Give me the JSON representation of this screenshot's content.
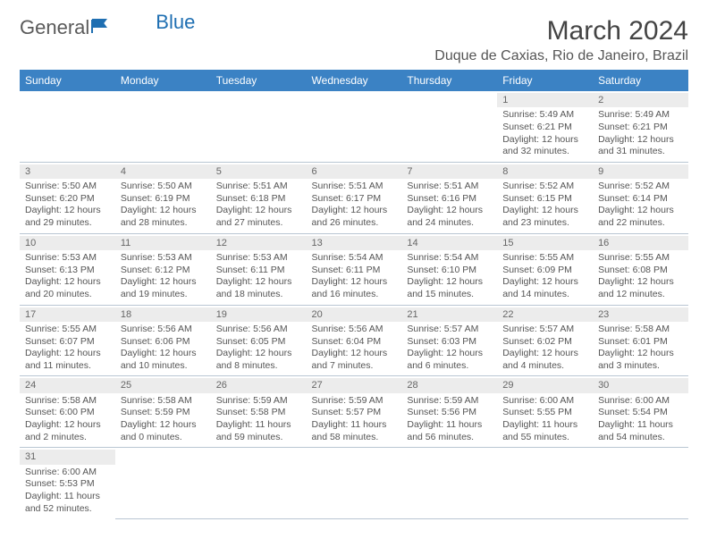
{
  "brand": {
    "name1": "General",
    "name2": "Blue"
  },
  "title": "March 2024",
  "location": "Duque de Caxias, Rio de Janeiro, Brazil",
  "colors": {
    "header_bg": "#3b82c4",
    "header_text": "#ffffff",
    "text": "#555555",
    "daynum_bg": "#ececec",
    "border": "#b9c6d3",
    "brand_accent": "#1f6fb2"
  },
  "fonts": {
    "title_size": 30,
    "location_size": 16,
    "th_size": 12,
    "cell_size": 10.5
  },
  "weekdays": [
    "Sunday",
    "Monday",
    "Tuesday",
    "Wednesday",
    "Thursday",
    "Friday",
    "Saturday"
  ],
  "leading_blanks": 5,
  "days": [
    {
      "n": "1",
      "sr": "Sunrise: 5:49 AM",
      "ss": "Sunset: 6:21 PM",
      "d1": "Daylight: 12 hours",
      "d2": "and 32 minutes."
    },
    {
      "n": "2",
      "sr": "Sunrise: 5:49 AM",
      "ss": "Sunset: 6:21 PM",
      "d1": "Daylight: 12 hours",
      "d2": "and 31 minutes."
    },
    {
      "n": "3",
      "sr": "Sunrise: 5:50 AM",
      "ss": "Sunset: 6:20 PM",
      "d1": "Daylight: 12 hours",
      "d2": "and 29 minutes."
    },
    {
      "n": "4",
      "sr": "Sunrise: 5:50 AM",
      "ss": "Sunset: 6:19 PM",
      "d1": "Daylight: 12 hours",
      "d2": "and 28 minutes."
    },
    {
      "n": "5",
      "sr": "Sunrise: 5:51 AM",
      "ss": "Sunset: 6:18 PM",
      "d1": "Daylight: 12 hours",
      "d2": "and 27 minutes."
    },
    {
      "n": "6",
      "sr": "Sunrise: 5:51 AM",
      "ss": "Sunset: 6:17 PM",
      "d1": "Daylight: 12 hours",
      "d2": "and 26 minutes."
    },
    {
      "n": "7",
      "sr": "Sunrise: 5:51 AM",
      "ss": "Sunset: 6:16 PM",
      "d1": "Daylight: 12 hours",
      "d2": "and 24 minutes."
    },
    {
      "n": "8",
      "sr": "Sunrise: 5:52 AM",
      "ss": "Sunset: 6:15 PM",
      "d1": "Daylight: 12 hours",
      "d2": "and 23 minutes."
    },
    {
      "n": "9",
      "sr": "Sunrise: 5:52 AM",
      "ss": "Sunset: 6:14 PM",
      "d1": "Daylight: 12 hours",
      "d2": "and 22 minutes."
    },
    {
      "n": "10",
      "sr": "Sunrise: 5:53 AM",
      "ss": "Sunset: 6:13 PM",
      "d1": "Daylight: 12 hours",
      "d2": "and 20 minutes."
    },
    {
      "n": "11",
      "sr": "Sunrise: 5:53 AM",
      "ss": "Sunset: 6:12 PM",
      "d1": "Daylight: 12 hours",
      "d2": "and 19 minutes."
    },
    {
      "n": "12",
      "sr": "Sunrise: 5:53 AM",
      "ss": "Sunset: 6:11 PM",
      "d1": "Daylight: 12 hours",
      "d2": "and 18 minutes."
    },
    {
      "n": "13",
      "sr": "Sunrise: 5:54 AM",
      "ss": "Sunset: 6:11 PM",
      "d1": "Daylight: 12 hours",
      "d2": "and 16 minutes."
    },
    {
      "n": "14",
      "sr": "Sunrise: 5:54 AM",
      "ss": "Sunset: 6:10 PM",
      "d1": "Daylight: 12 hours",
      "d2": "and 15 minutes."
    },
    {
      "n": "15",
      "sr": "Sunrise: 5:55 AM",
      "ss": "Sunset: 6:09 PM",
      "d1": "Daylight: 12 hours",
      "d2": "and 14 minutes."
    },
    {
      "n": "16",
      "sr": "Sunrise: 5:55 AM",
      "ss": "Sunset: 6:08 PM",
      "d1": "Daylight: 12 hours",
      "d2": "and 12 minutes."
    },
    {
      "n": "17",
      "sr": "Sunrise: 5:55 AM",
      "ss": "Sunset: 6:07 PM",
      "d1": "Daylight: 12 hours",
      "d2": "and 11 minutes."
    },
    {
      "n": "18",
      "sr": "Sunrise: 5:56 AM",
      "ss": "Sunset: 6:06 PM",
      "d1": "Daylight: 12 hours",
      "d2": "and 10 minutes."
    },
    {
      "n": "19",
      "sr": "Sunrise: 5:56 AM",
      "ss": "Sunset: 6:05 PM",
      "d1": "Daylight: 12 hours",
      "d2": "and 8 minutes."
    },
    {
      "n": "20",
      "sr": "Sunrise: 5:56 AM",
      "ss": "Sunset: 6:04 PM",
      "d1": "Daylight: 12 hours",
      "d2": "and 7 minutes."
    },
    {
      "n": "21",
      "sr": "Sunrise: 5:57 AM",
      "ss": "Sunset: 6:03 PM",
      "d1": "Daylight: 12 hours",
      "d2": "and 6 minutes."
    },
    {
      "n": "22",
      "sr": "Sunrise: 5:57 AM",
      "ss": "Sunset: 6:02 PM",
      "d1": "Daylight: 12 hours",
      "d2": "and 4 minutes."
    },
    {
      "n": "23",
      "sr": "Sunrise: 5:58 AM",
      "ss": "Sunset: 6:01 PM",
      "d1": "Daylight: 12 hours",
      "d2": "and 3 minutes."
    },
    {
      "n": "24",
      "sr": "Sunrise: 5:58 AM",
      "ss": "Sunset: 6:00 PM",
      "d1": "Daylight: 12 hours",
      "d2": "and 2 minutes."
    },
    {
      "n": "25",
      "sr": "Sunrise: 5:58 AM",
      "ss": "Sunset: 5:59 PM",
      "d1": "Daylight: 12 hours",
      "d2": "and 0 minutes."
    },
    {
      "n": "26",
      "sr": "Sunrise: 5:59 AM",
      "ss": "Sunset: 5:58 PM",
      "d1": "Daylight: 11 hours",
      "d2": "and 59 minutes."
    },
    {
      "n": "27",
      "sr": "Sunrise: 5:59 AM",
      "ss": "Sunset: 5:57 PM",
      "d1": "Daylight: 11 hours",
      "d2": "and 58 minutes."
    },
    {
      "n": "28",
      "sr": "Sunrise: 5:59 AM",
      "ss": "Sunset: 5:56 PM",
      "d1": "Daylight: 11 hours",
      "d2": "and 56 minutes."
    },
    {
      "n": "29",
      "sr": "Sunrise: 6:00 AM",
      "ss": "Sunset: 5:55 PM",
      "d1": "Daylight: 11 hours",
      "d2": "and 55 minutes."
    },
    {
      "n": "30",
      "sr": "Sunrise: 6:00 AM",
      "ss": "Sunset: 5:54 PM",
      "d1": "Daylight: 11 hours",
      "d2": "and 54 minutes."
    },
    {
      "n": "31",
      "sr": "Sunrise: 6:00 AM",
      "ss": "Sunset: 5:53 PM",
      "d1": "Daylight: 11 hours",
      "d2": "and 52 minutes."
    }
  ]
}
